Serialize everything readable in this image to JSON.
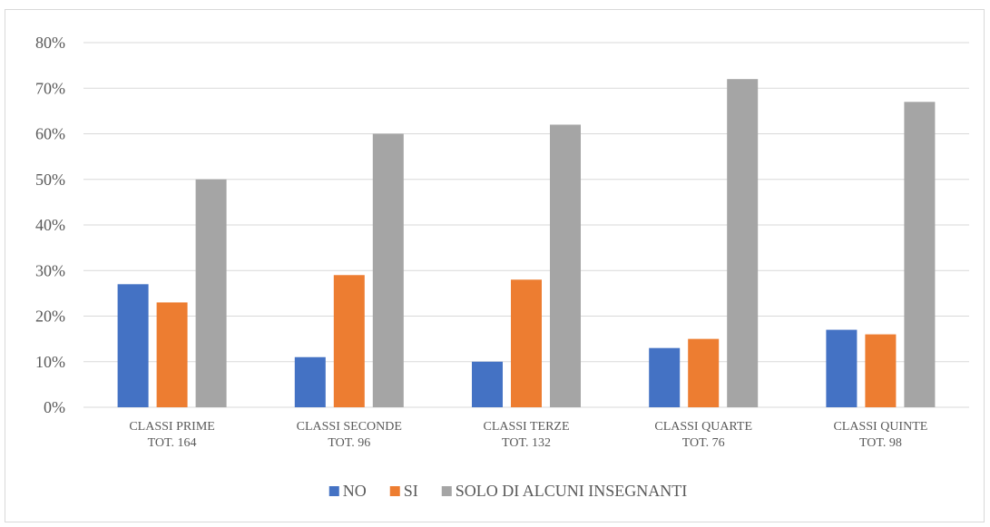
{
  "chart_data": {
    "type": "bar",
    "categories": [
      [
        "CLASSI PRIME",
        "TOT. 164"
      ],
      [
        "CLASSI SECONDE",
        "TOT. 96"
      ],
      [
        "CLASSI TERZE",
        "TOT. 132"
      ],
      [
        "CLASSI QUARTE",
        "TOT. 76"
      ],
      [
        "CLASSI QUINTE",
        "TOT. 98"
      ]
    ],
    "series": [
      {
        "name": "NO",
        "color": "#4472c4",
        "values": [
          27,
          11,
          10,
          13,
          17
        ]
      },
      {
        "name": "SI",
        "color": "#ed7d31",
        "values": [
          23,
          29,
          28,
          15,
          16
        ]
      },
      {
        "name": "SOLO DI ALCUNI INSEGNANTI",
        "color": "#a5a5a5",
        "values": [
          50,
          60,
          62,
          72,
          67
        ]
      }
    ],
    "ylim": [
      0,
      80
    ],
    "yticks": [
      0,
      10,
      20,
      30,
      40,
      50,
      60,
      70,
      80
    ],
    "ytick_suffix": "%",
    "grid": true,
    "legend_position": "bottom",
    "title": "",
    "xlabel": "",
    "ylabel": ""
  }
}
